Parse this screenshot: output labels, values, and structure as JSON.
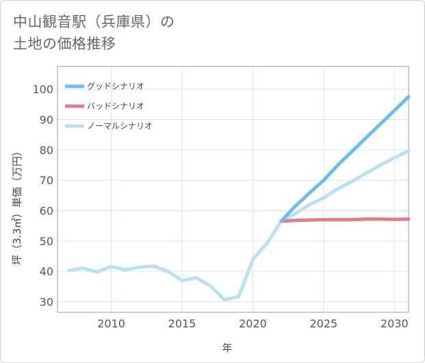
{
  "title": {
    "line1": "中山観音駅（兵庫県）の",
    "line2": "土地の価格推移"
  },
  "chart_data": {
    "type": "line",
    "xlabel": "年",
    "ylabel": "坪（3.3㎡）単価（万円）",
    "xlim": [
      2006.2,
      2031
    ],
    "ylim": [
      26.5,
      107.5
    ],
    "x_ticks": [
      "2010",
      "2015",
      "2020",
      "2025",
      "2030"
    ],
    "y_ticks": [
      "30",
      "40",
      "50",
      "60",
      "70",
      "80",
      "90",
      "100"
    ],
    "grid": true,
    "legend_position": "top-left",
    "series": [
      {
        "name": "グッドシナリオ",
        "color": "#6ebbf0",
        "x": [
          2022,
          2023,
          2024,
          2025,
          2026,
          2027,
          2028,
          2029,
          2030,
          2031
        ],
        "y": [
          56.5,
          61.5,
          65.8,
          70.0,
          75.0,
          79.5,
          84.0,
          88.5,
          93.0,
          97.5
        ]
      },
      {
        "name": "バッドシナリオ",
        "color": "#db7f8b",
        "x": [
          2022,
          2023,
          2024,
          2025,
          2026,
          2027,
          2028,
          2029,
          2030,
          2031
        ],
        "y": [
          56.5,
          56.8,
          56.9,
          57.0,
          57.0,
          57.0,
          57.2,
          57.2,
          57.1,
          57.2
        ]
      },
      {
        "name": "ノーマルシナリオ",
        "color": "#bde0ee",
        "x": [
          2007,
          2008,
          2009,
          2010,
          2011,
          2012,
          2013,
          2014,
          2015,
          2016,
          2017,
          2018,
          2019,
          2020,
          2021,
          2022,
          2023,
          2024,
          2025,
          2026,
          2027,
          2028,
          2029,
          2030,
          2031
        ],
        "y": [
          40.3,
          41.0,
          39.8,
          41.6,
          40.5,
          41.4,
          41.7,
          40.0,
          37.0,
          37.9,
          35.2,
          30.6,
          31.7,
          44.0,
          49.2,
          56.5,
          59.0,
          62.0,
          64.2,
          67.2,
          69.6,
          72.3,
          75.0,
          77.4,
          79.7
        ]
      }
    ]
  }
}
